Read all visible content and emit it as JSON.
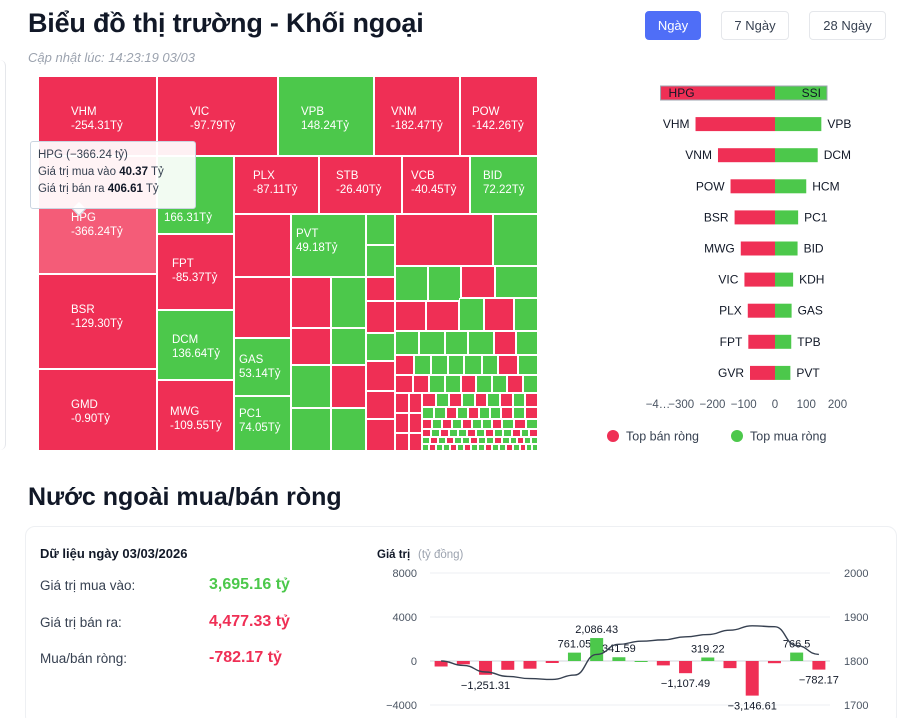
{
  "header": {
    "title": "Biểu đồ thị trường - Khối ngoại",
    "updated": "Cập nhật lúc: 14:23:19 03/03",
    "ranges": [
      "Ngày",
      "7 Ngày",
      "28 Ngày"
    ],
    "active_range": "Ngày"
  },
  "colors": {
    "sell": "#ef2f55",
    "buy": "#4cc84b",
    "accent": "#4f6ef7"
  },
  "treemap": {
    "cells": [
      {
        "ticker": "VHM",
        "value": "-254.31Tỷ"
      },
      {
        "ticker": "HPG",
        "value": "-366.24Tỷ"
      },
      {
        "ticker": "BSR",
        "value": "-129.30Tỷ"
      },
      {
        "ticker": "GMD",
        "value": "-0.90Tỷ"
      },
      {
        "ticker": "VIC",
        "value": "-97.79Tỷ"
      },
      {
        "ticker": "",
        "value": "166.31Tỷ"
      },
      {
        "ticker": "FPT",
        "value": "-85.37Tỷ"
      },
      {
        "ticker": "DCM",
        "value": "136.64Tỷ"
      },
      {
        "ticker": "MWG",
        "value": "-109.55Tỷ"
      },
      {
        "ticker": "VPB",
        "value": "148.24Tỷ"
      },
      {
        "ticker": "VNM",
        "value": "-182.47Tỷ"
      },
      {
        "ticker": "POW",
        "value": "-142.26Tỷ"
      },
      {
        "ticker": "PLX",
        "value": "-87.11Tỷ"
      },
      {
        "ticker": "STB",
        "value": "-26.40Tỷ"
      },
      {
        "ticker": "VCB",
        "value": "-40.45Tỷ"
      },
      {
        "ticker": "BID",
        "value": "72.22Tỷ"
      },
      {
        "ticker": "PVT",
        "value": "49.18Tỷ"
      },
      {
        "ticker": "GAS",
        "value": "53.14Tỷ"
      },
      {
        "ticker": "PC1",
        "value": "74.05Tỷ"
      }
    ],
    "tooltip": {
      "title": "HPG (−366.24 tỷ)",
      "buy_label": "Giá trị mua vào",
      "buy_value": "40.37",
      "sell_label": "Giá trị bán ra",
      "sell_value": "406.61",
      "unit": "Tỷ"
    }
  },
  "chart_data": [
    {
      "type": "bar",
      "orientation": "horizontal",
      "x_ticks": [
        "−4…",
        "−300",
        "−200",
        "−100",
        "0",
        "100",
        "200"
      ],
      "xlim": [
        -400,
        200
      ],
      "legend": [
        "Top bán ròng",
        "Top mua ròng"
      ],
      "legend_position": "bottom",
      "sell": [
        {
          "ticker": "HPG",
          "value": -366.24
        },
        {
          "ticker": "VHM",
          "value": -254.31
        },
        {
          "ticker": "VNM",
          "value": -182.47
        },
        {
          "ticker": "POW",
          "value": -142.26
        },
        {
          "ticker": "BSR",
          "value": -129.3
        },
        {
          "ticker": "MWG",
          "value": -109.55
        },
        {
          "ticker": "VIC",
          "value": -97.79
        },
        {
          "ticker": "PLX",
          "value": -87.11
        },
        {
          "ticker": "FPT",
          "value": -85.37
        },
        {
          "ticker": "GVR",
          "value": -80
        }
      ],
      "buy": [
        {
          "ticker": "SSI",
          "value": 166.31
        },
        {
          "ticker": "VPB",
          "value": 148.24
        },
        {
          "ticker": "DCM",
          "value": 136.64
        },
        {
          "ticker": "HCM",
          "value": 100
        },
        {
          "ticker": "PC1",
          "value": 74.05
        },
        {
          "ticker": "BID",
          "value": 72.22
        },
        {
          "ticker": "KDH",
          "value": 58
        },
        {
          "ticker": "GAS",
          "value": 53.14
        },
        {
          "ticker": "TPB",
          "value": 52
        },
        {
          "ticker": "PVT",
          "value": 49.18
        }
      ]
    },
    {
      "type": "bar",
      "ylabel": "Giá trị",
      "yunit": "(tỷ đồng)",
      "y_ticks": [
        "8000",
        "4000",
        "0",
        "−4000"
      ],
      "ylim": [
        -4000,
        8000
      ],
      "y2_ticks": [
        "2000",
        "1900",
        "1800",
        "1700"
      ],
      "y2lim": [
        1700,
        2000
      ],
      "bars": [
        -500,
        -300,
        -1251.31,
        -800,
        -700,
        -150,
        761.05,
        2086.43,
        341.59,
        0,
        -400,
        -1107.49,
        319.22,
        -650,
        -3146.61,
        -200,
        766.5,
        -782.17
      ],
      "labels": [
        "",
        "",
        "−1,251.31",
        "",
        "",
        "",
        "761.05",
        "2,086.43",
        "341.59",
        "",
        "",
        "−1,107.49",
        "319.22",
        "",
        "−3,146.61",
        "",
        "766.5",
        "−782.17"
      ],
      "line": [
        1800,
        1790,
        1775,
        1765,
        1760,
        1758,
        1768,
        1815,
        1838,
        1845,
        1848,
        1855,
        1860,
        1870,
        1880,
        1878,
        1835,
        1815
      ]
    }
  ],
  "summary": {
    "heading": "Nước ngoài mua/bán ròng",
    "date_label": "Dữ liệu ngày 03/03/2026",
    "buy_label": "Giá trị mua vào:",
    "buy_value": "3,695.16 tỷ",
    "sell_label": "Giá trị bán ra:",
    "sell_value": "4,477.33 tỷ",
    "net_label": "Mua/bán ròng:",
    "net_value": "-782.17 tỷ"
  }
}
